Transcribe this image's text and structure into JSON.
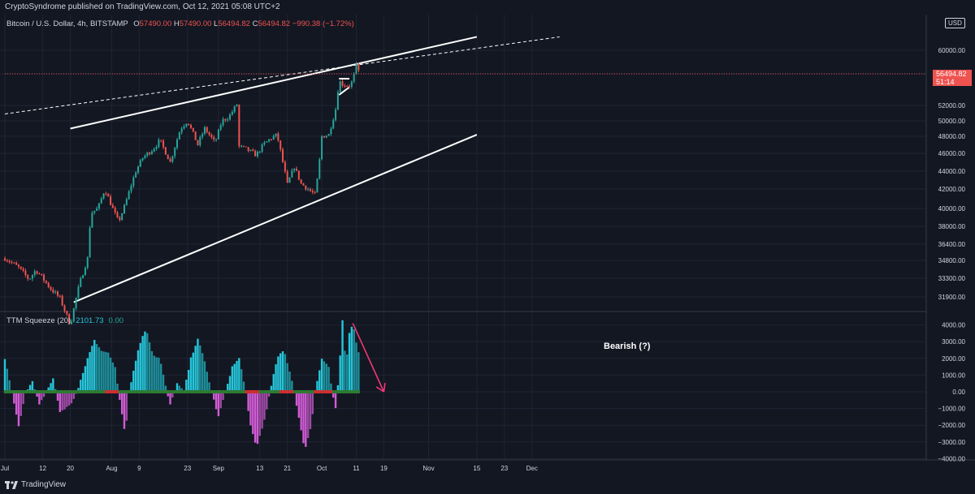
{
  "header": {
    "published": "CryptoSyndrome published on TradingView.com, Oct 12, 2021 05:08 UTC+2"
  },
  "symbol_legend": {
    "name": "Bitcoin / U.S. Dollar, 4h, BITSTAMP",
    "o_label": "O",
    "o_value": "57490.00",
    "h_label": "H",
    "h_value": "57490.00",
    "l_label": "L",
    "l_value": "56494.82",
    "c_label": "C",
    "c_value": "56494.82",
    "change": "−990.38 (−1.72%)"
  },
  "currency": "USD",
  "last_price": {
    "value": "56494.82",
    "countdown": "51:14"
  },
  "indicator_legend": {
    "name": "TTM Squeeze (20)",
    "value1": "2101.73",
    "value2": "0.00"
  },
  "annotation": {
    "text": "Bearish (?)"
  },
  "brand": {
    "text": "TradingView"
  },
  "colors": {
    "background": "#131722",
    "up": "#26a69a",
    "down": "#ef5350",
    "momentum_pos": "#26c6da",
    "momentum_neg": "#d25cd6",
    "squeeze_on": "#d32f2f",
    "squeeze_off": "#2e7d32",
    "arrow": "#f23675"
  },
  "chart_data": [
    {
      "type": "candlestick",
      "title": "Bitcoin / U.S. Dollar, 4h, BITSTAMP",
      "y_axis_ticks": [
        31900,
        33300,
        34800,
        36400,
        38000,
        40000,
        42000,
        44000,
        46000,
        48000,
        50000,
        52000,
        56494.82,
        60000
      ],
      "ylim": [
        31200,
        62000
      ],
      "x_tick_labels": [
        "Jul",
        "12",
        "20",
        "Aug",
        "9",
        "23",
        "Sep",
        "13",
        "21",
        "Oct",
        "11",
        "19",
        "Nov",
        "15",
        "23",
        "Dec"
      ],
      "price_path": [
        [
          "2021-07-01",
          35000
        ],
        [
          "2021-07-05",
          34200
        ],
        [
          "2021-07-08",
          33200
        ],
        [
          "2021-07-10",
          34000
        ],
        [
          "2021-07-14",
          32600
        ],
        [
          "2021-07-17",
          31800
        ],
        [
          "2021-07-20",
          29800
        ],
        [
          "2021-07-22",
          32200
        ],
        [
          "2021-07-25",
          35000
        ],
        [
          "2021-07-26",
          39500
        ],
        [
          "2021-07-28",
          40000
        ],
        [
          "2021-07-30",
          42000
        ],
        [
          "2021-08-03",
          38500
        ],
        [
          "2021-08-05",
          40500
        ],
        [
          "2021-08-08",
          44000
        ],
        [
          "2021-08-10",
          45500
        ],
        [
          "2021-08-13",
          46500
        ],
        [
          "2021-08-15",
          47500
        ],
        [
          "2021-08-18",
          45000
        ],
        [
          "2021-08-21",
          49000
        ],
        [
          "2021-08-23",
          50000
        ],
        [
          "2021-08-26",
          47000
        ],
        [
          "2021-08-28",
          49000
        ],
        [
          "2021-08-31",
          47200
        ],
        [
          "2021-09-02",
          50000
        ],
        [
          "2021-09-04",
          50500
        ],
        [
          "2021-09-07",
          52600
        ],
        [
          "2021-09-07",
          46800
        ],
        [
          "2021-09-09",
          46500
        ],
        [
          "2021-09-12",
          45800
        ],
        [
          "2021-09-14",
          47000
        ],
        [
          "2021-09-16",
          47700
        ],
        [
          "2021-09-18",
          48200
        ],
        [
          "2021-09-21",
          42500
        ],
        [
          "2021-09-23",
          44500
        ],
        [
          "2021-09-25",
          42600
        ],
        [
          "2021-09-29",
          41400
        ],
        [
          "2021-09-30",
          43800
        ],
        [
          "2021-10-01",
          48000
        ],
        [
          "2021-10-03",
          48200
        ],
        [
          "2021-10-05",
          51500
        ],
        [
          "2021-10-06",
          55500
        ],
        [
          "2021-10-07",
          55000
        ],
        [
          "2021-10-09",
          54800
        ],
        [
          "2021-10-10",
          55500
        ],
        [
          "2021-10-11",
          57700
        ],
        [
          "2021-10-12",
          56494.82
        ]
      ],
      "trendlines": [
        {
          "name": "channel-upper",
          "style": "solid",
          "from": [
            "2021-07-20",
            49000
          ],
          "to": [
            "2021-11-15",
            62000
          ]
        },
        {
          "name": "channel-lower",
          "style": "solid",
          "from": [
            "2021-07-21",
            31500
          ],
          "to": [
            "2021-11-15",
            48200
          ]
        },
        {
          "name": "upper-dashed",
          "style": "dashed",
          "from": [
            "2021-07-01",
            50900
          ],
          "to": [
            "2021-12-09",
            62000
          ]
        },
        {
          "name": "flag-top",
          "style": "solid",
          "from": [
            "2021-10-06",
            55800
          ],
          "to": [
            "2021-10-09",
            55800
          ]
        },
        {
          "name": "flag-bottom",
          "style": "solid",
          "from": [
            "2021-10-06",
            53500
          ],
          "to": [
            "2021-10-09",
            54600
          ]
        }
      ]
    },
    {
      "type": "bar",
      "title": "TTM Squeeze (20)",
      "y_axis_ticks": [
        4000,
        3000,
        2000,
        1000,
        0,
        -1000,
        -2000,
        -3000,
        -4000
      ],
      "ylim": [
        -4000,
        4000
      ],
      "momentum_path": [
        [
          "2021-07-01",
          2000
        ],
        [
          "2021-07-03",
          0
        ],
        [
          "2021-07-05",
          -2100
        ],
        [
          "2021-07-07",
          0
        ],
        [
          "2021-07-09",
          600
        ],
        [
          "2021-07-11",
          -800
        ],
        [
          "2021-07-13",
          0
        ],
        [
          "2021-07-15",
          800
        ],
        [
          "2021-07-17",
          -1200
        ],
        [
          "2021-07-20",
          -800
        ],
        [
          "2021-07-22",
          0
        ],
        [
          "2021-07-25",
          2000
        ],
        [
          "2021-07-27",
          3100
        ],
        [
          "2021-07-29",
          2500
        ],
        [
          "2021-07-31",
          2300
        ],
        [
          "2021-08-02",
          1500
        ],
        [
          "2021-08-03",
          0
        ],
        [
          "2021-08-05",
          -2600
        ],
        [
          "2021-08-06",
          0
        ],
        [
          "2021-08-09",
          2800
        ],
        [
          "2021-08-11",
          3800
        ],
        [
          "2021-08-13",
          2200
        ],
        [
          "2021-08-15",
          2000
        ],
        [
          "2021-08-17",
          0
        ],
        [
          "2021-08-18",
          -800
        ],
        [
          "2021-08-20",
          500
        ],
        [
          "2021-08-22",
          0
        ],
        [
          "2021-08-24",
          2000
        ],
        [
          "2021-08-26",
          3200
        ],
        [
          "2021-08-28",
          1800
        ],
        [
          "2021-08-30",
          0
        ],
        [
          "2021-09-01",
          -1500
        ],
        [
          "2021-09-03",
          0
        ],
        [
          "2021-09-05",
          1500
        ],
        [
          "2021-09-07",
          2000
        ],
        [
          "2021-09-09",
          0
        ],
        [
          "2021-09-10",
          -1800
        ],
        [
          "2021-09-12",
          -3300
        ],
        [
          "2021-09-14",
          -2000
        ],
        [
          "2021-09-16",
          0
        ],
        [
          "2021-09-18",
          2000
        ],
        [
          "2021-09-20",
          2500
        ],
        [
          "2021-09-22",
          1000
        ],
        [
          "2021-09-23",
          0
        ],
        [
          "2021-09-26",
          -3500
        ],
        [
          "2021-09-28",
          -2000
        ],
        [
          "2021-09-29",
          0
        ],
        [
          "2021-10-01",
          2000
        ],
        [
          "2021-10-03",
          1500
        ],
        [
          "2021-10-04",
          0
        ],
        [
          "2021-10-05",
          -1000
        ],
        [
          "2021-10-06",
          1000
        ],
        [
          "2021-10-07",
          4300
        ],
        [
          "2021-10-08",
          1500
        ],
        [
          "2021-10-09",
          3500
        ],
        [
          "2021-10-10",
          4100
        ],
        [
          "2021-10-11",
          3000
        ],
        [
          "2021-10-12",
          2101.73
        ]
      ],
      "arrow": {
        "from": [
          "2021-10-10",
          4100
        ],
        "to": [
          "2021-10-19",
          0
        ]
      }
    }
  ]
}
